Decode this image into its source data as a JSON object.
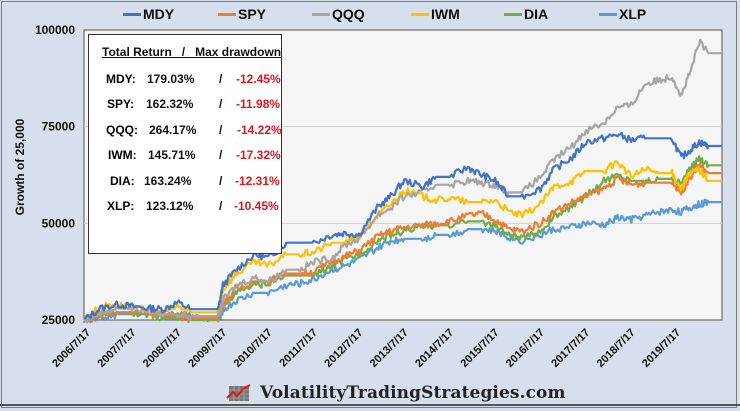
{
  "chart_data": {
    "type": "line",
    "title": "",
    "xlabel": "",
    "ylabel": "Growth of 25,000",
    "ylim": [
      25000,
      100000
    ],
    "yticks": [
      "25000",
      "50000",
      "75000",
      "100000"
    ],
    "ytick_values": [
      25000,
      50000,
      75000,
      100000
    ],
    "grid": "horizontal",
    "legend_placement": "top",
    "xlim": [
      2006.54,
      2020.6
    ],
    "xtick_labels": [
      "2006/7/17",
      "2007/7/17",
      "2008/7/17",
      "2009/7/17",
      "2010/7/17",
      "2011/7/17",
      "2012/7/17",
      "2013/7/17",
      "2014/7/17",
      "2015/7/17",
      "2016/7/17",
      "2017/7/17",
      "2018/7/17",
      "2019/7/17"
    ],
    "xtick_values": [
      2006.54,
      2007.54,
      2008.54,
      2009.54,
      2010.54,
      2011.54,
      2012.54,
      2013.54,
      2014.54,
      2015.54,
      2016.54,
      2017.54,
      2018.54,
      2019.54
    ],
    "x": [
      2006.54,
      2006.9,
      2007.3,
      2007.6,
      2008.0,
      2008.3,
      2008.6,
      2008.9,
      2009.3,
      2009.5,
      2009.6,
      2009.9,
      2010.3,
      2010.6,
      2011.0,
      2011.3,
      2011.6,
      2012.0,
      2012.3,
      2012.6,
      2013.0,
      2013.3,
      2013.6,
      2014.0,
      2014.3,
      2014.6,
      2015.0,
      2015.3,
      2015.6,
      2015.9,
      2016.2,
      2016.6,
      2016.9,
      2017.3,
      2017.6,
      2018.0,
      2018.3,
      2018.6,
      2018.9,
      2019.2,
      2019.5,
      2019.7,
      2019.9,
      2020.1,
      2020.3,
      2020.6
    ],
    "series": [
      {
        "name": "MDY",
        "color": "#4472c4",
        "values": [
          25000,
          28000,
          29000,
          28500,
          28000,
          27800,
          29500,
          27800,
          27800,
          27800,
          34000,
          38000,
          42000,
          41000,
          45000,
          45000,
          45000,
          47000,
          47500,
          47000,
          54000,
          57000,
          61000,
          59500,
          62000,
          62000,
          64500,
          62500,
          61000,
          57000,
          57000,
          59000,
          64000,
          67000,
          71000,
          72000,
          73000,
          71500,
          72000,
          72000,
          72000,
          67000,
          69000,
          71000,
          70000,
          70000
        ]
      },
      {
        "name": "SPY",
        "color": "#ed7d31",
        "values": [
          25000,
          26000,
          27000,
          27000,
          27000,
          26000,
          26000,
          25500,
          25500,
          25500,
          29000,
          33000,
          35000,
          35000,
          37000,
          37000,
          37500,
          40000,
          41500,
          43000,
          46500,
          48000,
          49000,
          49500,
          50000,
          50500,
          52000,
          52500,
          51000,
          48500,
          48000,
          50000,
          53000,
          55500,
          57000,
          59000,
          61500,
          60000,
          60500,
          60500,
          60500,
          58000,
          62000,
          65000,
          63000,
          63000
        ]
      },
      {
        "name": "QQQ",
        "color": "#a5a5a5",
        "values": [
          25000,
          27000,
          28000,
          28000,
          27500,
          26500,
          26500,
          26000,
          26000,
          26000,
          30000,
          34000,
          36000,
          35000,
          38000,
          38000,
          40000,
          41000,
          44500,
          46000,
          52000,
          54000,
          57000,
          58000,
          60000,
          60000,
          61000,
          60500,
          60000,
          58000,
          58000,
          62000,
          66500,
          70000,
          74000,
          76000,
          80000,
          80500,
          86000,
          87000,
          88000,
          83000,
          89000,
          97000,
          94000,
          94000
        ]
      },
      {
        "name": "IWM",
        "color": "#ffc000",
        "values": [
          25000,
          28500,
          29000,
          28000,
          27500,
          27000,
          28500,
          27000,
          27000,
          27000,
          33000,
          37000,
          40000,
          39000,
          42000,
          42000,
          42500,
          45000,
          45000,
          46500,
          52000,
          55000,
          58500,
          57000,
          56000,
          56500,
          55500,
          55500,
          56000,
          53000,
          52000,
          55000,
          59500,
          61000,
          63500,
          63500,
          66000,
          62000,
          64000,
          63000,
          63000,
          59000,
          63000,
          64000,
          61000,
          61000
        ]
      },
      {
        "name": "DIA",
        "color": "#70ad47",
        "values": [
          25000,
          26500,
          27000,
          27000,
          26500,
          25500,
          25500,
          25000,
          25000,
          25000,
          29000,
          32000,
          34000,
          34500,
          36500,
          36500,
          36500,
          39000,
          40500,
          42000,
          45500,
          47000,
          48000,
          49000,
          49500,
          49500,
          50500,
          50500,
          49500,
          47000,
          46000,
          48000,
          51500,
          54500,
          57000,
          61000,
          62500,
          61000,
          61000,
          61500,
          61500,
          60500,
          64000,
          67000,
          65000,
          65000
        ]
      },
      {
        "name": "XLP",
        "color": "#5b9bd5",
        "values": [
          25000,
          25500,
          26500,
          26500,
          26500,
          26000,
          26500,
          26000,
          25000,
          25000,
          27500,
          30000,
          32000,
          32000,
          34000,
          34500,
          35500,
          38000,
          39000,
          40500,
          43500,
          45500,
          46000,
          46000,
          47000,
          47000,
          48500,
          48500,
          48000,
          46500,
          45500,
          47000,
          48500,
          49000,
          50000,
          49500,
          51500,
          51000,
          52000,
          53000,
          53500,
          53000,
          54000,
          55000,
          55500,
          55500
        ]
      }
    ]
  },
  "legend": [
    {
      "label": "MDY",
      "color": "#4472c4"
    },
    {
      "label": "SPY",
      "color": "#ed7d31"
    },
    {
      "label": "QQQ",
      "color": "#a5a5a5"
    },
    {
      "label": "IWM",
      "color": "#ffc000"
    },
    {
      "label": "DIA",
      "color": "#70ad47"
    },
    {
      "label": "XLP",
      "color": "#5b9bd5"
    }
  ],
  "stats": {
    "title": "Total Return   /   Max drawdown",
    "rows": [
      {
        "ticker": "MDY:",
        "total_return": "179.03%",
        "sep": "/",
        "max_drawdown": "-12.45%"
      },
      {
        "ticker": "SPY:",
        "total_return": "162.32%",
        "sep": "/",
        "max_drawdown": "-11.98%"
      },
      {
        "ticker": "QQQ:",
        "total_return": "264.17%",
        "sep": "/",
        "max_drawdown": "-14.22%"
      },
      {
        "ticker": "IWM:",
        "total_return": "145.71%",
        "sep": "/",
        "max_drawdown": "-17.32%"
      },
      {
        "ticker": "DIA:",
        "total_return": "163.24%",
        "sep": "/",
        "max_drawdown": "-12.31%"
      },
      {
        "ticker": "XLP:",
        "total_return": "123.12%",
        "sep": "/",
        "max_drawdown": "-10.45%"
      }
    ]
  },
  "footer": {
    "site": "VolatilityTradingStrategies.com",
    "logo_icon": "chart-logo-icon"
  }
}
